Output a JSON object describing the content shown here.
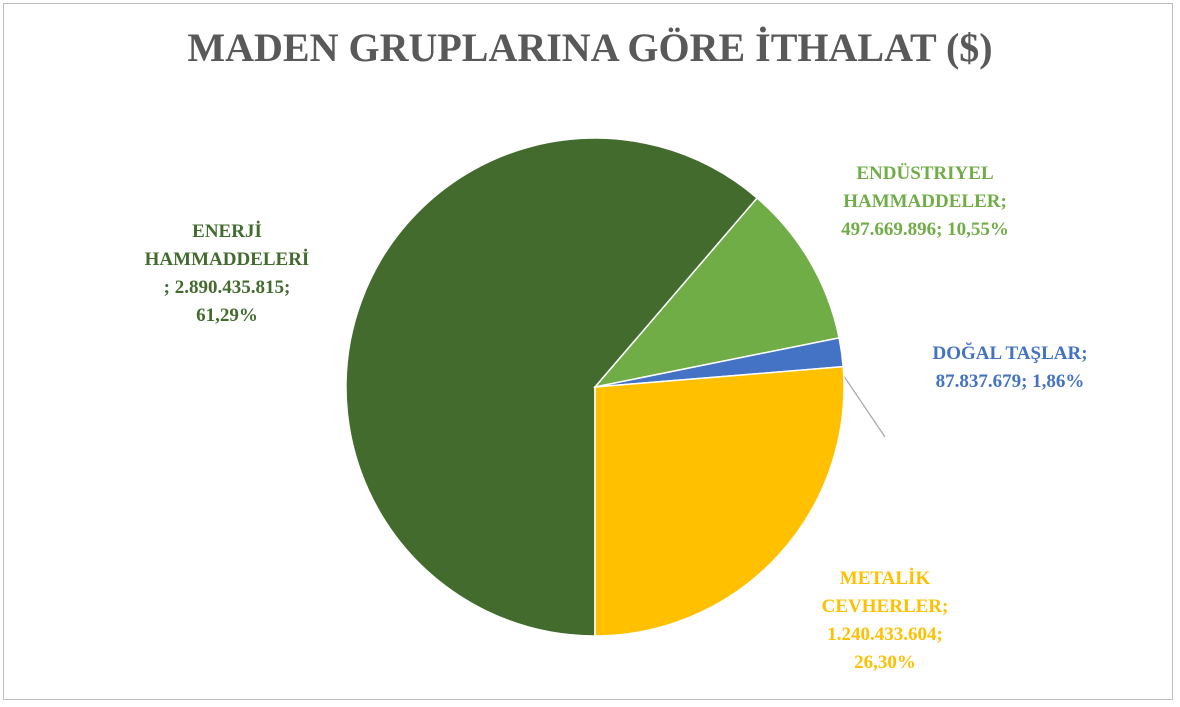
{
  "chart_data": {
    "type": "pie",
    "title": "MADEN GRUPLARINA GÖRE İTHALAT  ($)",
    "categories": [
      "ENERJİ HAMMADDELERİ",
      "ENDÜSTRIYEL HAMMADDELER",
      "DOĞAL TAŞLAR",
      "METALİK CEVHERLER"
    ],
    "values": [
      2890435815,
      497669896,
      87837679,
      1240433604
    ],
    "value_labels": [
      "2.890.435.815",
      "497.669.896",
      "87.837.679",
      "1.240.433.604"
    ],
    "percent": [
      61.29,
      10.55,
      1.86,
      26.3
    ],
    "percent_labels": [
      "61,29%",
      "10,55%",
      "1,86%",
      "26,30%"
    ],
    "label_separator": "; ",
    "colors": [
      "#426b2d",
      "#70ad47",
      "#4472c4",
      "#ffc000"
    ]
  }
}
